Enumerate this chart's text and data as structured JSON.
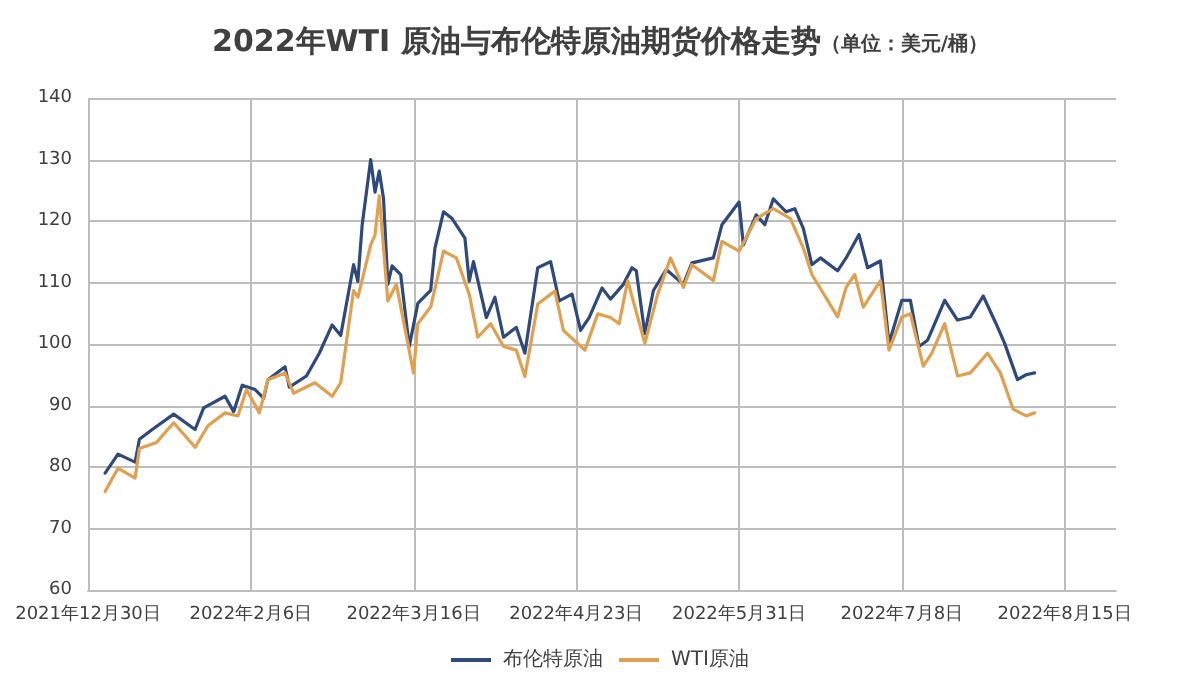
{
  "chart_data": {
    "type": "line",
    "title": "2022年WTI 原油与布伦特原油期货价格走势",
    "subtitle": "（单位：美元/桶）",
    "xlim": [
      "2021-12-30",
      "2022-08-27"
    ],
    "xticks": [
      {
        "value": "2021-12-30",
        "label": "2021年12月30日"
      },
      {
        "value": "2022-02-06",
        "label": "2022年2月6日"
      },
      {
        "value": "2022-03-16",
        "label": "2022年3月16日"
      },
      {
        "value": "2022-04-23",
        "label": "2022年4月23日"
      },
      {
        "value": "2022-05-31",
        "label": "2022年5月31日"
      },
      {
        "value": "2022-07-08",
        "label": "2022年7月8日"
      },
      {
        "value": "2022-08-15",
        "label": "2022年8月15日"
      }
    ],
    "ylim": [
      60,
      140
    ],
    "yticks": [
      60,
      70,
      80,
      90,
      100,
      110,
      120,
      130,
      140
    ],
    "grid": true,
    "legend": "bottom",
    "marker": "none",
    "line_style": "solid",
    "series": [
      {
        "name": "布伦特原油",
        "color": "#2e4a7d",
        "x": [
          "2022-01-03",
          "2022-01-06",
          "2022-01-10",
          "2022-01-11",
          "2022-01-14",
          "2022-01-19",
          "2022-01-24",
          "2022-01-26",
          "2022-01-31",
          "2022-02-02",
          "2022-02-04",
          "2022-02-07",
          "2022-02-09",
          "2022-02-10",
          "2022-02-14",
          "2022-02-15",
          "2022-02-19",
          "2022-02-22",
          "2022-02-25",
          "2022-02-27",
          "2022-03-02",
          "2022-03-03",
          "2022-03-04",
          "2022-03-06",
          "2022-03-07",
          "2022-03-08",
          "2022-03-09",
          "2022-03-10",
          "2022-03-11",
          "2022-03-13",
          "2022-03-15",
          "2022-03-17",
          "2022-03-20",
          "2022-03-21",
          "2022-03-23",
          "2022-03-25",
          "2022-03-28",
          "2022-03-29",
          "2022-03-30",
          "2022-04-02",
          "2022-04-04",
          "2022-04-06",
          "2022-04-09",
          "2022-04-11",
          "2022-04-14",
          "2022-04-17",
          "2022-04-19",
          "2022-04-22",
          "2022-04-24",
          "2022-04-26",
          "2022-04-29",
          "2022-05-01",
          "2022-05-04",
          "2022-05-06",
          "2022-05-07",
          "2022-05-09",
          "2022-05-11",
          "2022-05-14",
          "2022-05-18",
          "2022-05-20",
          "2022-05-25",
          "2022-05-27",
          "2022-05-31",
          "2022-06-01",
          "2022-06-04",
          "2022-06-06",
          "2022-06-08",
          "2022-06-11",
          "2022-06-13",
          "2022-06-15",
          "2022-06-17",
          "2022-06-19",
          "2022-06-23",
          "2022-06-25",
          "2022-06-28",
          "2022-06-30",
          "2022-07-03",
          "2022-07-05",
          "2022-07-08",
          "2022-07-10",
          "2022-07-12",
          "2022-07-14",
          "2022-07-18",
          "2022-07-21",
          "2022-07-24",
          "2022-07-27",
          "2022-07-30",
          "2022-08-01",
          "2022-08-04",
          "2022-08-06",
          "2022-08-08"
        ],
        "values": [
          79.0,
          82.1,
          80.8,
          84.5,
          86.1,
          88.6,
          86.1,
          89.6,
          91.5,
          89.0,
          93.3,
          92.6,
          91.2,
          94.2,
          96.3,
          93.0,
          94.8,
          98.5,
          103.1,
          101.4,
          112.9,
          110.2,
          119.3,
          130.0,
          124.7,
          128.1,
          123.6,
          109.7,
          112.7,
          111.3,
          99.6,
          106.6,
          108.7,
          115.6,
          121.5,
          120.4,
          117.2,
          110.2,
          113.4,
          104.3,
          107.6,
          101.1,
          102.7,
          98.5,
          112.4,
          113.4,
          107.0,
          108.1,
          102.2,
          104.3,
          109.1,
          107.3,
          109.7,
          112.4,
          111.9,
          101.7,
          108.7,
          112.1,
          109.7,
          113.2,
          114.0,
          119.4,
          123.1,
          116.1,
          121.0,
          119.4,
          123.6,
          121.5,
          122.0,
          118.8,
          112.9,
          114.0,
          111.9,
          114.0,
          117.8,
          112.4,
          113.5,
          100.1,
          107.1,
          107.1,
          99.6,
          100.6,
          107.1,
          103.9,
          104.4,
          107.8,
          103.3,
          100.1,
          94.2,
          95.0,
          95.3
        ]
      },
      {
        "name": "WTI原油",
        "color": "#e0a050",
        "x": [
          "2022-01-03",
          "2022-01-06",
          "2022-01-10",
          "2022-01-11",
          "2022-01-15",
          "2022-01-19",
          "2022-01-24",
          "2022-01-27",
          "2022-01-31",
          "2022-02-03",
          "2022-02-05",
          "2022-02-08",
          "2022-02-10",
          "2022-02-14",
          "2022-02-16",
          "2022-02-21",
          "2022-02-25",
          "2022-02-27",
          "2022-03-02",
          "2022-03-03",
          "2022-03-06",
          "2022-03-07",
          "2022-03-08",
          "2022-03-10",
          "2022-03-12",
          "2022-03-16",
          "2022-03-17",
          "2022-03-20",
          "2022-03-23",
          "2022-03-26",
          "2022-03-29",
          "2022-03-31",
          "2022-04-03",
          "2022-04-06",
          "2022-04-09",
          "2022-04-11",
          "2022-04-14",
          "2022-04-18",
          "2022-04-20",
          "2022-04-25",
          "2022-04-28",
          "2022-05-01",
          "2022-05-03",
          "2022-05-05",
          "2022-05-09",
          "2022-05-12",
          "2022-05-15",
          "2022-05-18",
          "2022-05-20",
          "2022-05-25",
          "2022-05-27",
          "2022-05-31",
          "2022-06-04",
          "2022-06-08",
          "2022-06-12",
          "2022-06-15",
          "2022-06-17",
          "2022-06-23",
          "2022-06-25",
          "2022-06-27",
          "2022-06-29",
          "2022-07-03",
          "2022-07-05",
          "2022-07-08",
          "2022-07-10",
          "2022-07-13",
          "2022-07-15",
          "2022-07-18",
          "2022-07-21",
          "2022-07-24",
          "2022-07-28",
          "2022-07-31",
          "2022-08-03",
          "2022-08-06",
          "2022-08-08"
        ],
        "values": [
          76.0,
          79.8,
          78.2,
          83.0,
          84.0,
          87.2,
          83.2,
          86.7,
          88.8,
          88.3,
          92.6,
          88.8,
          94.2,
          95.3,
          92.0,
          93.7,
          91.5,
          93.7,
          108.7,
          107.6,
          116.1,
          117.7,
          124.1,
          107.0,
          109.7,
          95.3,
          103.3,
          106.0,
          115.1,
          114.0,
          108.1,
          101.1,
          103.3,
          99.6,
          99.0,
          94.7,
          106.5,
          108.6,
          102.2,
          99.0,
          104.9,
          104.3,
          103.3,
          110.3,
          100.1,
          108.1,
          114.0,
          109.2,
          112.9,
          110.3,
          116.7,
          115.1,
          120.4,
          122.0,
          120.4,
          115.6,
          111.3,
          104.4,
          109.2,
          111.3,
          106.0,
          110.3,
          99.0,
          104.4,
          104.9,
          96.4,
          98.5,
          103.3,
          94.8,
          95.3,
          98.5,
          95.3,
          89.4,
          88.3,
          88.8
        ]
      }
    ]
  }
}
